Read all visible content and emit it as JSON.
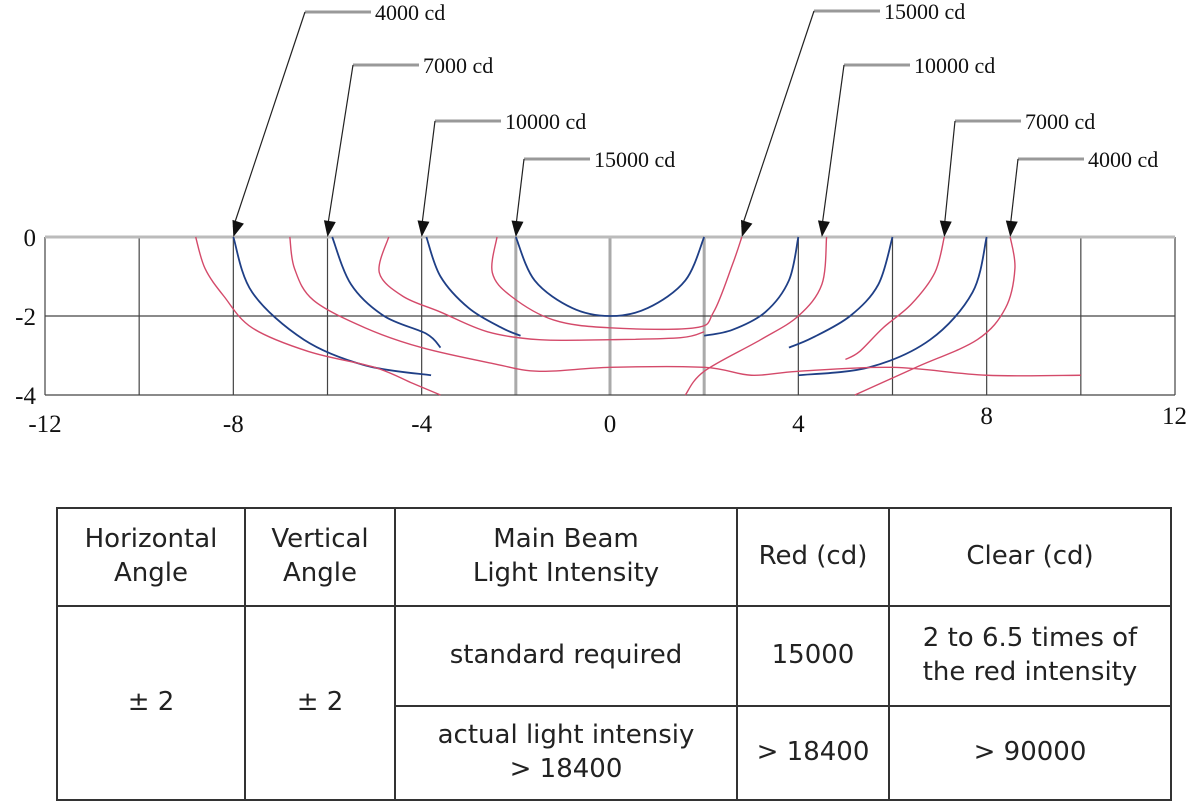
{
  "chart_data": {
    "type": "contour",
    "x_ticks": [
      "-12",
      "-8",
      "-4",
      "0",
      "4",
      "8",
      "12"
    ],
    "y_ticks": [
      "0",
      "-2",
      "-4"
    ],
    "xlim": [
      -12,
      12
    ],
    "ylim": [
      -4,
      0
    ],
    "grid": true,
    "series": [
      {
        "color": "#1f3f86",
        "contours": [
          {
            "label": "4000 cd",
            "points": [
              [
                -8,
                0
              ],
              [
                -7.6,
                -1.4
              ],
              [
                -6.5,
                -2.6
              ],
              [
                -5.2,
                -3.25
              ],
              [
                -3.8,
                -3.5
              ]
            ]
          },
          {
            "label": "7000 cd",
            "points": [
              [
                -5.9,
                0
              ],
              [
                -5.5,
                -1.2
              ],
              [
                -4.8,
                -2.0
              ],
              [
                -3.9,
                -2.45
              ],
              [
                -3.6,
                -2.8
              ]
            ]
          },
          {
            "label": "10000 cd",
            "points": [
              [
                -3.9,
                0
              ],
              [
                -3.6,
                -1.0
              ],
              [
                -3.0,
                -1.8
              ],
              [
                -2.3,
                -2.3
              ],
              [
                -1.9,
                -2.5
              ]
            ]
          },
          {
            "label": "15000 cd",
            "points": [
              [
                -2,
                0
              ],
              [
                -1.6,
                -1.1
              ],
              [
                -0.8,
                -1.8
              ],
              [
                0,
                -2.0
              ],
              [
                0.8,
                -1.8
              ],
              [
                1.6,
                -1.1
              ],
              [
                2,
                0
              ]
            ]
          },
          {
            "label": "10000 cd",
            "points": [
              [
                4,
                0
              ],
              [
                3.8,
                -1.1
              ],
              [
                3.3,
                -1.9
              ],
              [
                2.6,
                -2.35
              ],
              [
                2,
                -2.5
              ]
            ]
          },
          {
            "label": "7000 cd",
            "points": [
              [
                6,
                0
              ],
              [
                5.7,
                -1.2
              ],
              [
                5.1,
                -2.0
              ],
              [
                4.3,
                -2.55
              ],
              [
                3.8,
                -2.8
              ]
            ]
          },
          {
            "label": "4000 cd",
            "points": [
              [
                8,
                0
              ],
              [
                7.7,
                -1.4
              ],
              [
                6.8,
                -2.6
              ],
              [
                5.5,
                -3.3
              ],
              [
                4,
                -3.5
              ]
            ]
          }
        ]
      },
      {
        "color": "#d44a6a",
        "contours": [
          {
            "label": "",
            "points": [
              [
                -8.8,
                0
              ],
              [
                -8.6,
                -0.8
              ],
              [
                -8.2,
                -1.5
              ],
              [
                -7.6,
                -2.3
              ],
              [
                -6.4,
                -2.9
              ],
              [
                -5.0,
                -3.3
              ],
              [
                -4.2,
                -3.7
              ],
              [
                -3.6,
                -4.0
              ]
            ]
          },
          {
            "label": "",
            "points": [
              [
                -6.8,
                0
              ],
              [
                -6.7,
                -0.8
              ],
              [
                -6.3,
                -1.6
              ],
              [
                -5.2,
                -2.3
              ],
              [
                -4.0,
                -2.8
              ],
              [
                -2.5,
                -3.2
              ],
              [
                -1.5,
                -3.4
              ],
              [
                0,
                -3.3
              ],
              [
                2,
                -3.3
              ],
              [
                3,
                -3.5
              ],
              [
                4,
                -3.4
              ],
              [
                6,
                -3.3
              ],
              [
                8,
                -3.5
              ],
              [
                10,
                -3.5
              ]
            ]
          },
          {
            "label": "",
            "points": [
              [
                -4.7,
                0
              ],
              [
                -4.9,
                -0.9
              ],
              [
                -4.4,
                -1.5
              ],
              [
                -3.6,
                -1.9
              ],
              [
                -2.6,
                -2.4
              ],
              [
                -1.5,
                -2.6
              ],
              [
                0,
                -2.6
              ],
              [
                1.5,
                -2.55
              ],
              [
                2.0,
                -2.4
              ]
            ]
          },
          {
            "label": "",
            "points": [
              [
                -2.4,
                0
              ],
              [
                -2.5,
                -0.9
              ],
              [
                -2.1,
                -1.5
              ],
              [
                -1.2,
                -2.1
              ],
              [
                0,
                -2.3
              ],
              [
                1.8,
                -2.3
              ],
              [
                2.2,
                -1.9
              ],
              [
                2.6,
                -0.7
              ],
              [
                2.8,
                0
              ]
            ]
          },
          {
            "label": "",
            "points": [
              [
                4.6,
                0
              ],
              [
                4.5,
                -1.2
              ],
              [
                4.0,
                -2.0
              ],
              [
                3.2,
                -2.6
              ],
              [
                2.0,
                -3.4
              ],
              [
                1.6,
                -4.0
              ]
            ]
          },
          {
            "label": "",
            "points": [
              [
                7.1,
                0
              ],
              [
                6.9,
                -0.9
              ],
              [
                6.4,
                -1.7
              ],
              [
                5.8,
                -2.3
              ],
              [
                5.3,
                -2.9
              ],
              [
                5.0,
                -3.1
              ]
            ]
          },
          {
            "label": "",
            "points": [
              [
                8.5,
                0
              ],
              [
                8.6,
                -0.8
              ],
              [
                8.4,
                -1.8
              ],
              [
                7.8,
                -2.6
              ],
              [
                6.5,
                -3.3
              ],
              [
                5.2,
                -4.0
              ]
            ]
          }
        ]
      }
    ],
    "callouts": [
      {
        "text": "4000 cd",
        "target": [
          -8,
          0
        ]
      },
      {
        "text": "7000 cd",
        "target": [
          -6,
          0
        ]
      },
      {
        "text": "10000 cd",
        "target": [
          -4,
          0
        ]
      },
      {
        "text": "15000 cd",
        "target": [
          -2,
          0
        ]
      },
      {
        "text": "15000 cd",
        "target": [
          2.8,
          0
        ]
      },
      {
        "text": "10000 cd",
        "target": [
          4.5,
          0
        ]
      },
      {
        "text": "7000 cd",
        "target": [
          7.1,
          0
        ]
      },
      {
        "text": "4000 cd",
        "target": [
          8.5,
          0
        ]
      }
    ]
  },
  "table": {
    "headers": [
      [
        "Horizontal",
        "Angle"
      ],
      [
        "Vertical",
        "Angle"
      ],
      [
        "Main Beam",
        "Light Intensity"
      ],
      [
        "Red (cd)"
      ],
      [
        "Clear (cd)"
      ]
    ],
    "horizontal_angle": "± 2",
    "vertical_angle": "± 2",
    "rows": [
      {
        "label": [
          "standard required"
        ],
        "red": "15000",
        "clear": [
          "2 to 6.5 times of",
          "the red intensity"
        ]
      },
      {
        "label": [
          "actual light intensiy",
          "> 18400"
        ],
        "red": "> 18400",
        "clear": [
          "> 90000"
        ]
      }
    ]
  }
}
